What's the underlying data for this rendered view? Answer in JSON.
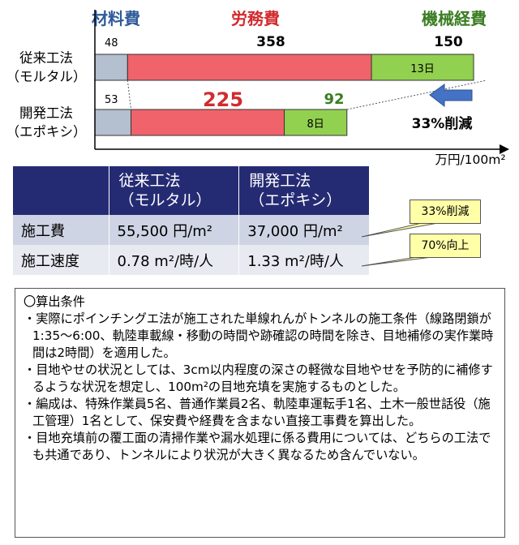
{
  "chart_data": {
    "type": "bar",
    "orientation": "horizontal",
    "stacked": true,
    "categories": [
      "従来工法\n（モルタル）",
      "開発工法\n（エポキシ）"
    ],
    "category_lines": [
      [
        "従来工法",
        "（モルタル）"
      ],
      [
        "開発工法",
        "（エポキシ）"
      ]
    ],
    "series": [
      {
        "name": "材料費",
        "values": [
          48,
          53
        ],
        "color": "#b4bfcf",
        "name_color": "#2e5b9a"
      },
      {
        "name": "労務費",
        "values": [
          358,
          225
        ],
        "color": "#f0636b",
        "name_color": "#d12b2e"
      },
      {
        "name": "機械経費",
        "values": [
          150,
          92
        ],
        "color": "#92d050",
        "name_color": "#3a7d22"
      }
    ],
    "value_labels": [
      [
        "48",
        "358",
        "150"
      ],
      [
        "53",
        "225",
        "92"
      ]
    ],
    "segment_labels": [
      [
        "",
        "",
        "13日"
      ],
      [
        "",
        "",
        "8日"
      ]
    ],
    "xlim": [
      0,
      620
    ],
    "xlabel": "万円/100m²",
    "annotation": "33%削減",
    "title": ""
  },
  "table": {
    "headers": [
      "",
      "従来工法\n（モルタル）",
      "開発工法\n（エポキシ）"
    ],
    "header_lines": [
      [
        "従来工法",
        "（モルタル）"
      ],
      [
        "開発工法",
        "（エポキシ）"
      ]
    ],
    "rows": [
      {
        "label": "施工費",
        "conventional": "55,500 円/m²",
        "developed": "37,000 円/m²"
      },
      {
        "label": "施工速度",
        "conventional": "0.78 m²/時/人",
        "developed": "1.33 m²/時/人"
      }
    ],
    "header_color": "#252b73"
  },
  "callouts": [
    "33%削減",
    "70%向上"
  ],
  "notes": {
    "heading": "〇算出条件",
    "items": [
      "・実際にポインチングエ法が施工された単線れんがトンネルの施工条件（線路閉鎖が1:35〜6:00、軌陸車載線・移動の時間や跡確認の時間を除き、目地補修の実作業時間は2時間）を適用した。",
      "・目地やせの状況としては、3cm以内程度の深さの軽微な目地やせを予防的に補修するような状況を想定し、100m²の目地充填を実施するものとした。",
      "・編成は、特殊作業員5名、普通作業員2名、軌陸車運転手1名、土木一般世話役（施工管理）1名として、保安費や経費を含まない直接工事費を算出した。",
      "・目地充填前の覆工面の清掃作業や漏水処理に係る費用については、どちらの工法でも共通であり、トンネルにより状況が大きく異なるため含んでいない。"
    ]
  }
}
